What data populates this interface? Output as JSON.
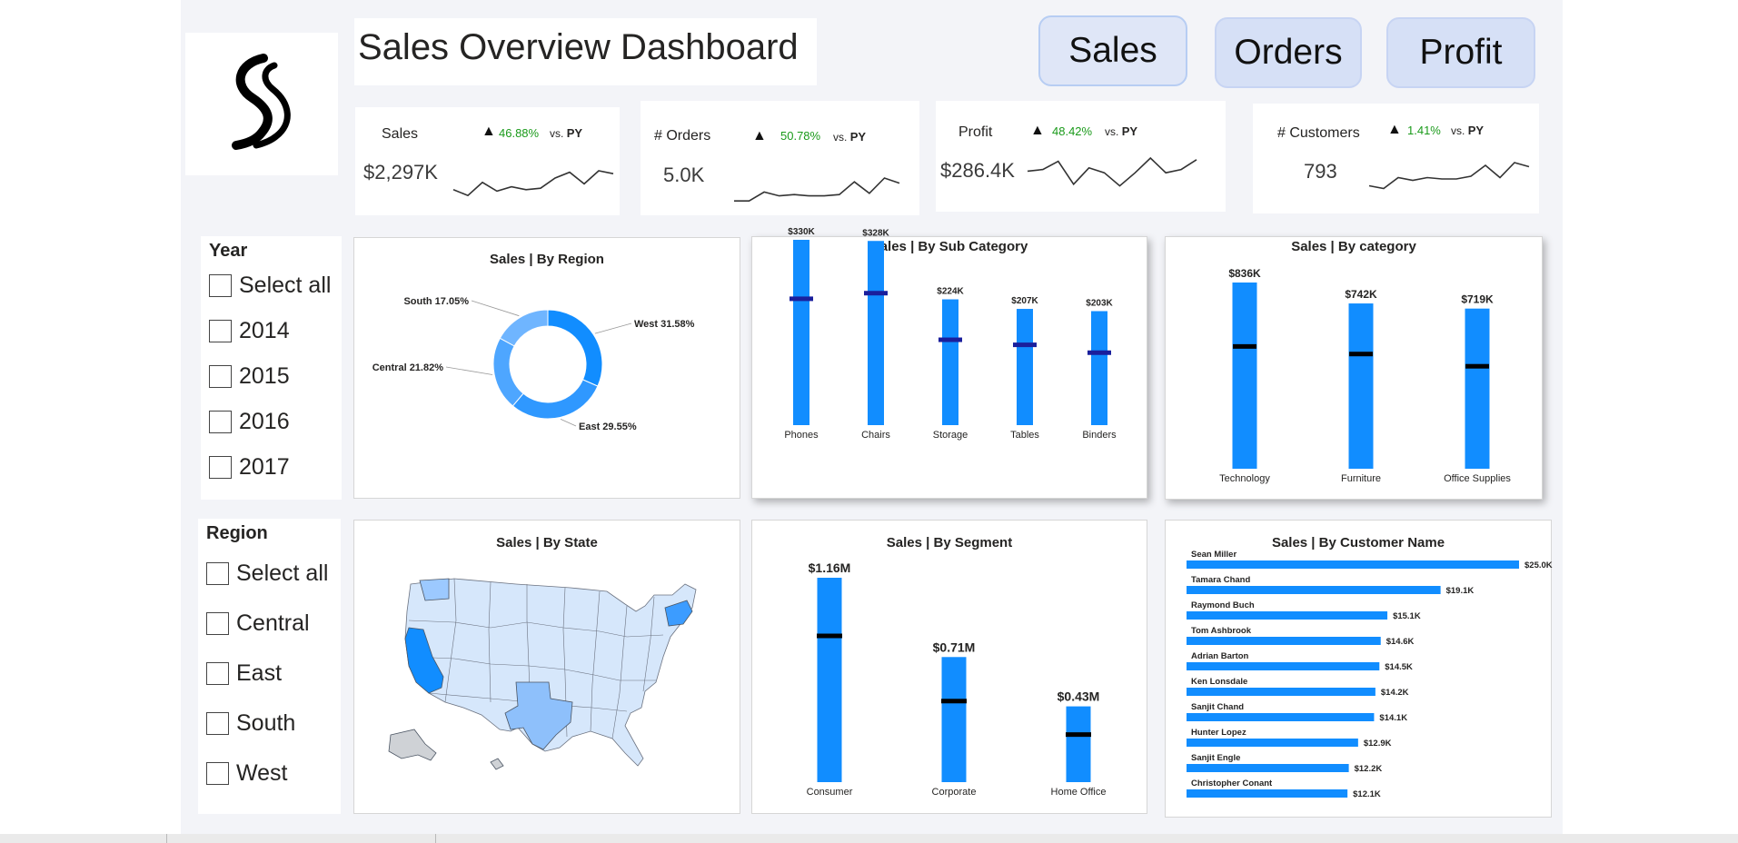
{
  "page": {
    "title": "Sales Overview Dashboard"
  },
  "nav": {
    "sales": "Sales",
    "orders": "Orders",
    "profit": "Profit"
  },
  "colors": {
    "bar": "#118dff",
    "target_marker": "#000000",
    "subcat_marker": "#1a1f9c",
    "positive": "#1a9a1a",
    "canvas": "#f3f4f8"
  },
  "kpis": {
    "sales": {
      "label": "Sales",
      "value": "$2,297K",
      "pct": "46.88%",
      "vs": "vs.",
      "py": "PY",
      "trend": [
        0.35,
        0.15,
        0.6,
        0.3,
        0.45,
        0.35,
        0.4,
        0.75,
        0.95,
        0.55,
        1.0,
        0.9
      ]
    },
    "orders": {
      "label": "# Orders",
      "value": "5.0K",
      "pct": "50.78%",
      "vs": "vs.",
      "py": "PY",
      "trend": [
        0.1,
        0.1,
        0.45,
        0.3,
        0.35,
        0.3,
        0.3,
        0.35,
        0.85,
        0.4,
        1.0,
        0.8
      ]
    },
    "profit": {
      "label": "Profit",
      "value": "$286.4K",
      "pct": "48.42%",
      "vs": "vs.",
      "py": "PY",
      "trend": [
        0.6,
        0.65,
        0.9,
        0.2,
        0.7,
        0.55,
        0.15,
        0.55,
        1.0,
        0.55,
        0.65,
        0.95
      ]
    },
    "customers": {
      "label": "# Customers",
      "value": "793",
      "pct": "1.41%",
      "vs": "vs.",
      "py": "PY",
      "trend": [
        0.15,
        0.05,
        0.45,
        0.35,
        0.45,
        0.4,
        0.4,
        0.5,
        0.9,
        0.45,
        1.0,
        0.85
      ]
    }
  },
  "slicers": {
    "year": {
      "title": "Year",
      "options": [
        "Select all",
        "2014",
        "2015",
        "2016",
        "2017"
      ]
    },
    "region": {
      "title": "Region",
      "options": [
        "Select all",
        "Central",
        "East",
        "South",
        "West"
      ]
    }
  },
  "visual_titles": {
    "region": "Sales | By Region",
    "subcategory": "Sales | By Sub Category",
    "category": "Sales | By category",
    "state": "Sales | By State",
    "segment": "Sales | By Segment",
    "customer": "Sales | By Customer Name"
  },
  "chart_data": [
    {
      "id": "region",
      "type": "pie",
      "title": "Sales | By Region",
      "slices": [
        {
          "name": "West",
          "value": 31.58,
          "label": "West 31.58%",
          "color": "#118dff"
        },
        {
          "name": "East",
          "value": 29.55,
          "label": "East 29.55%",
          "color": "#2f98ff"
        },
        {
          "name": "Central",
          "value": 21.82,
          "label": "Central 21.82%",
          "color": "#4ea6ff"
        },
        {
          "name": "South",
          "value": 17.05,
          "label": "South 17.05%",
          "color": "#6fb5ff"
        }
      ]
    },
    {
      "id": "subcategory",
      "type": "bar",
      "title": "Sales | By Sub Category",
      "categories": [
        "Phones",
        "Chairs",
        "Storage",
        "Tables",
        "Binders"
      ],
      "values": [
        330,
        328,
        224,
        207,
        203
      ],
      "labels": [
        "$330K",
        "$328K",
        "$224K",
        "$207K",
        "$203K"
      ],
      "targets": [
        225,
        235,
        152,
        143,
        129
      ],
      "ylim": [
        0,
        330
      ]
    },
    {
      "id": "category",
      "type": "bar",
      "title": "Sales | By category",
      "categories": [
        "Technology",
        "Furniture",
        "Office Supplies"
      ],
      "values": [
        836,
        742,
        719
      ],
      "labels": [
        "$836K",
        "$742K",
        "$719K"
      ],
      "targets": [
        549,
        515,
        460
      ],
      "ylim": [
        0,
        836
      ]
    },
    {
      "id": "segment",
      "type": "bar",
      "title": "Sales | By Segment",
      "categories": [
        "Consumer",
        "Corporate",
        "Home Office"
      ],
      "values": [
        1.16,
        0.71,
        0.43
      ],
      "labels": [
        "$1.16M",
        "$0.71M",
        "$0.43M"
      ],
      "targets": [
        0.83,
        0.46,
        0.27
      ],
      "ylim": [
        0,
        1.16
      ]
    },
    {
      "id": "customer",
      "type": "bar",
      "orientation": "horizontal",
      "title": "Sales | By Customer Name",
      "categories": [
        "Sean Miller",
        "Tamara Chand",
        "Raymond Buch",
        "Tom Ashbrook",
        "Adrian Barton",
        "Ken Lonsdale",
        "Sanjit Chand",
        "Hunter Lopez",
        "Sanjit Engle",
        "Christopher Conant"
      ],
      "values": [
        25.0,
        19.1,
        15.1,
        14.6,
        14.5,
        14.2,
        14.1,
        12.9,
        12.2,
        12.1
      ],
      "labels": [
        "$25.0K",
        "$19.1K",
        "$15.1K",
        "$14.6K",
        "$14.5K",
        "$14.2K",
        "$14.1K",
        "$12.9K",
        "$12.2K",
        "$12.1K"
      ],
      "xlim": [
        0,
        25.0
      ]
    },
    {
      "id": "state",
      "type": "map",
      "title": "Sales | By State",
      "highlighted": [
        "California",
        "New York",
        "Texas",
        "Washington"
      ]
    }
  ]
}
